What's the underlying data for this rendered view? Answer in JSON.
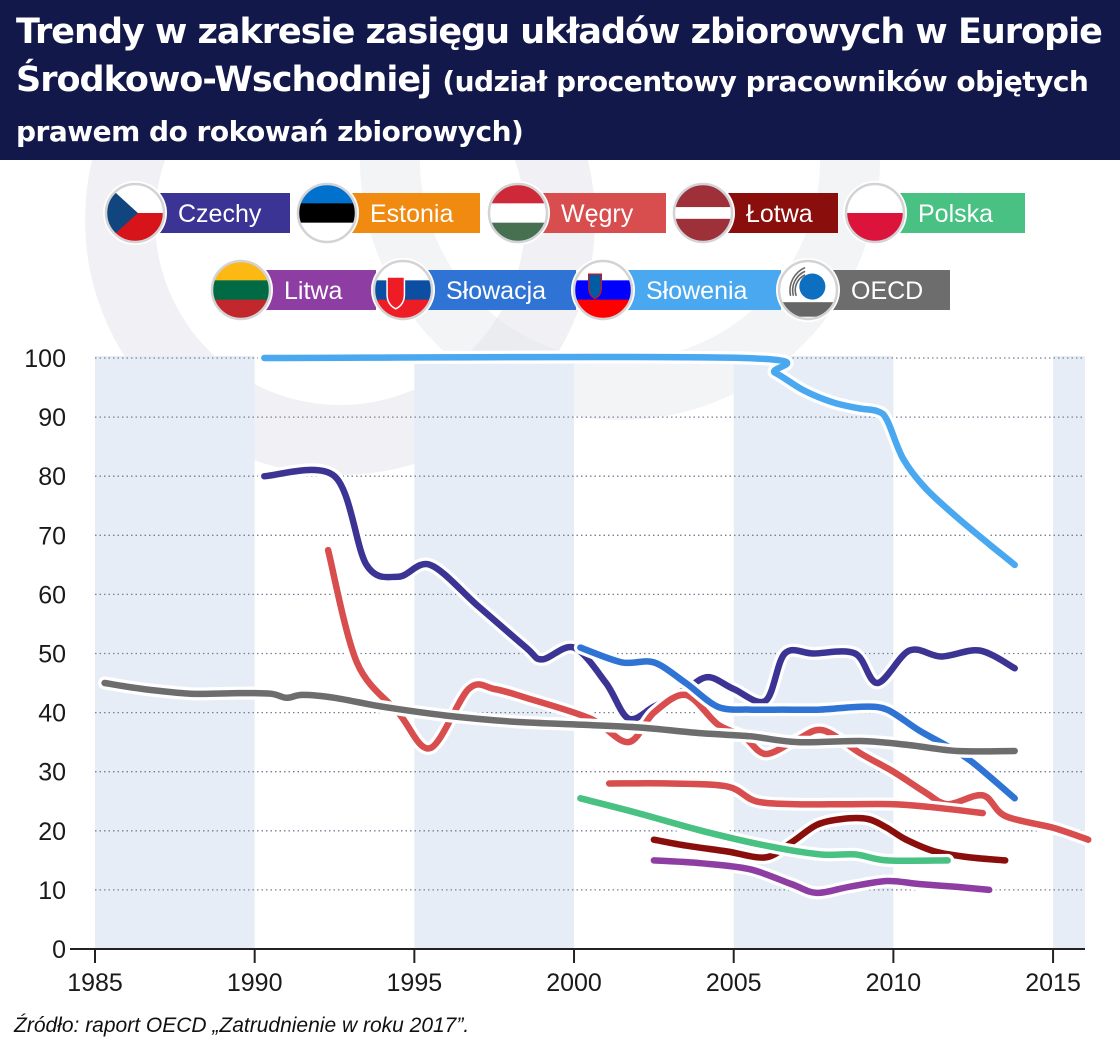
{
  "title": {
    "main": "Trendy w zakresie zasięgu układów zbiorowych w Europie Środkowo-Wschodniej",
    "subtitle": "(udział procentowy pracowników objętych prawem do rokowań zbiorowych)"
  },
  "source": "Źródło: raport OECD „Zatrudnienie w roku 2017”.",
  "chart_data": {
    "type": "line",
    "title": "Trendy w zakresie zasięgu układów zbiorowych w Europie Środkowo-Wschodniej",
    "subtitle": "(udział procentowy pracowników objętych prawem do rokowań zbiorowych)",
    "xlim": [
      1985,
      2016
    ],
    "ylim": [
      0,
      100
    ],
    "xticks": [
      1985,
      1990,
      1995,
      2000,
      2005,
      2010,
      2015
    ],
    "yticks": [
      0,
      10,
      20,
      30,
      40,
      50,
      60,
      70,
      80,
      90,
      100
    ],
    "grid": "horizontal dotted",
    "legend_position": "top",
    "shaded_bands": [
      [
        1985,
        1990
      ],
      [
        1995,
        2000
      ],
      [
        2005,
        2010
      ],
      [
        2015,
        2016
      ]
    ],
    "series": [
      {
        "name": "Czechy",
        "color": "#3b3494",
        "flag": "czech",
        "points": [
          [
            1990.3,
            80
          ],
          [
            1992.5,
            80
          ],
          [
            1993.5,
            65
          ],
          [
            1994.5,
            63
          ],
          [
            1995.5,
            65
          ],
          [
            1997,
            58
          ],
          [
            1998.5,
            51
          ],
          [
            1999,
            49
          ],
          [
            2000,
            51
          ],
          [
            2001,
            45
          ],
          [
            2001.7,
            39
          ],
          [
            2002.5,
            41
          ],
          [
            2003.5,
            44
          ],
          [
            2004.2,
            46
          ],
          [
            2005,
            44
          ],
          [
            2006,
            42
          ],
          [
            2006.6,
            50
          ],
          [
            2007.5,
            50
          ],
          [
            2008.8,
            50
          ],
          [
            2009.5,
            45
          ],
          [
            2010.5,
            50.5
          ],
          [
            2011.5,
            49.5
          ],
          [
            2012.7,
            50.5
          ],
          [
            2013.8,
            47.5
          ]
        ]
      },
      {
        "name": "Estonia",
        "color": "#f08a11",
        "flag": "estonia",
        "points": []
      },
      {
        "name": "Węgry",
        "color": "#d84d4d",
        "flag": "hungary",
        "points": [
          [
            1992.3,
            67.5
          ],
          [
            1993.2,
            48.5
          ],
          [
            1994.5,
            40
          ],
          [
            1995.5,
            34
          ],
          [
            1996.7,
            44
          ],
          [
            1997.5,
            44
          ],
          [
            1998.5,
            42.5
          ],
          [
            2000.5,
            39
          ],
          [
            2001.7,
            35
          ],
          [
            2002.5,
            40
          ],
          [
            2003.5,
            43
          ],
          [
            2004.5,
            38
          ],
          [
            2005.3,
            36
          ],
          [
            2006,
            33
          ],
          [
            2007,
            35.5
          ],
          [
            2007.8,
            37
          ],
          [
            2009,
            33
          ],
          [
            2010,
            30
          ],
          [
            2011,
            26.5
          ],
          [
            2011.7,
            24.5
          ],
          [
            2012.8,
            26
          ],
          [
            2013.5,
            22.5
          ],
          [
            2015,
            20.5
          ],
          [
            2016.1,
            18.5
          ]
        ]
      },
      {
        "name": "Węgry (2)",
        "color": "#d84d4d",
        "flag": "hungary",
        "points": [
          [
            2001.1,
            28
          ],
          [
            2003,
            28
          ],
          [
            2004.8,
            27.5
          ],
          [
            2005.7,
            25
          ],
          [
            2007,
            24.5
          ],
          [
            2008.5,
            24.5
          ],
          [
            2010,
            24.5
          ],
          [
            2011.2,
            24
          ],
          [
            2012.8,
            23
          ]
        ]
      },
      {
        "name": "Łotwa",
        "color": "#8a0f0c",
        "flag": "latvia",
        "points": [
          [
            2002.5,
            18.5
          ],
          [
            2003.5,
            17.5
          ],
          [
            2004.8,
            16.5
          ],
          [
            2006,
            15.5
          ],
          [
            2006.8,
            18
          ],
          [
            2007.6,
            21
          ],
          [
            2008.4,
            22
          ],
          [
            2009.2,
            22
          ],
          [
            2009.8,
            20.5
          ],
          [
            2010.4,
            18.5
          ],
          [
            2011.3,
            16.5
          ],
          [
            2012.4,
            15.5
          ],
          [
            2013.5,
            15
          ]
        ]
      },
      {
        "name": "Polska",
        "color": "#48c183",
        "flag": "poland",
        "points": [
          [
            2000.2,
            25.5
          ],
          [
            2002,
            23
          ],
          [
            2004,
            20
          ],
          [
            2006,
            17.5
          ],
          [
            2007.7,
            16
          ],
          [
            2008.8,
            16
          ],
          [
            2009.8,
            15
          ],
          [
            2011.7,
            15
          ]
        ]
      },
      {
        "name": "Litwa",
        "color": "#8e3ea3",
        "flag": "lithuania",
        "points": [
          [
            2002.5,
            15
          ],
          [
            2004,
            14.5
          ],
          [
            2005.5,
            13.5
          ],
          [
            2006.8,
            11
          ],
          [
            2007.6,
            9.5
          ],
          [
            2008.6,
            10.5
          ],
          [
            2009.8,
            11.5
          ],
          [
            2010.8,
            11
          ],
          [
            2012,
            10.5
          ],
          [
            2013,
            10
          ]
        ]
      },
      {
        "name": "Słowacja",
        "color": "#2f74d4",
        "flag": "slovakia",
        "points": [
          [
            2000.2,
            51
          ],
          [
            2001.5,
            48.5
          ],
          [
            2002.5,
            48.5
          ],
          [
            2003.5,
            45
          ],
          [
            2004.5,
            41
          ],
          [
            2005.5,
            40.5
          ],
          [
            2006.5,
            40.5
          ],
          [
            2007.7,
            40.5
          ],
          [
            2009,
            41
          ],
          [
            2009.8,
            40.5
          ],
          [
            2010.8,
            37
          ],
          [
            2011.8,
            34
          ],
          [
            2012.5,
            31.5
          ],
          [
            2013.8,
            25.5
          ]
        ]
      },
      {
        "name": "Słowenia",
        "color": "#4aa8f0",
        "flag": "slovenia",
        "points": [
          [
            1990.3,
            100
          ],
          [
            2005.3,
            100
          ],
          [
            2006.3,
            97.5
          ],
          [
            2007.2,
            94.5
          ],
          [
            2008.1,
            92.5
          ],
          [
            2008.9,
            91.5
          ],
          [
            2009.5,
            91
          ],
          [
            2009.8,
            89.5
          ],
          [
            2010.3,
            83
          ],
          [
            2011,
            78
          ],
          [
            2012,
            73
          ],
          [
            2013,
            68.5
          ],
          [
            2013.8,
            65
          ]
        ]
      },
      {
        "name": "OECD",
        "color": "#6d6d6d",
        "flag": "oecd",
        "points": [
          [
            1985.3,
            45
          ],
          [
            1986.5,
            44
          ],
          [
            1988,
            43.2
          ],
          [
            1989.5,
            43.3
          ],
          [
            1990.5,
            43.2
          ],
          [
            1991,
            42.5
          ],
          [
            1991.5,
            43
          ],
          [
            1992.5,
            42.5
          ],
          [
            1994,
            41
          ],
          [
            1996,
            39.5
          ],
          [
            1998,
            38.5
          ],
          [
            2000,
            38
          ],
          [
            2002,
            37.5
          ],
          [
            2004,
            36.5
          ],
          [
            2005.5,
            36
          ],
          [
            2007,
            35
          ],
          [
            2009,
            35.2
          ],
          [
            2010.5,
            34.5
          ],
          [
            2012,
            33.5
          ],
          [
            2013.8,
            33.5
          ]
        ]
      }
    ]
  },
  "legend": [
    {
      "name": "Czechy",
      "color": "#3b3494",
      "flag": "czech"
    },
    {
      "name": "Estonia",
      "color": "#f08a11",
      "flag": "estonia"
    },
    {
      "name": "Węgry",
      "color": "#d84d4d",
      "flag": "hungary"
    },
    {
      "name": "Łotwa",
      "color": "#8a0f0c",
      "flag": "latvia"
    },
    {
      "name": "Polska",
      "color": "#48c183",
      "flag": "poland"
    },
    {
      "name": "Litwa",
      "color": "#8e3ea3",
      "flag": "lithuania"
    },
    {
      "name": "Słowacja",
      "color": "#2f74d4",
      "flag": "slovakia"
    },
    {
      "name": "Słowenia",
      "color": "#4aa8f0",
      "flag": "slovenia"
    },
    {
      "name": "OECD",
      "color": "#6d6d6d",
      "flag": "oecd"
    }
  ]
}
